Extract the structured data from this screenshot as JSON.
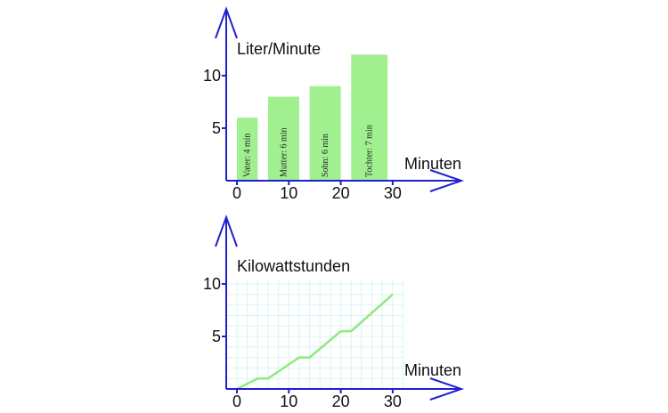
{
  "colors": {
    "axis": "#2020d0",
    "bar": "#a0f090",
    "line": "#90e880",
    "grid": "#d8f4f4"
  },
  "chart_data": [
    {
      "type": "bar",
      "ylabel": "Liter/Minute",
      "xlabel": "Minuten",
      "xticks": [
        "0",
        "10",
        "20",
        "30"
      ],
      "yticks": [
        "5",
        "10"
      ],
      "xlim": [
        -2,
        43
      ],
      "ylim": [
        0,
        16
      ],
      "bars": [
        {
          "label": "Vater: 4 min",
          "x_start": 0,
          "x_end": 4,
          "value": 6
        },
        {
          "label": "Mutter: 6 min",
          "x_start": 6,
          "x_end": 12,
          "value": 8
        },
        {
          "label": "Sohn: 6 min",
          "x_start": 14,
          "x_end": 20,
          "value": 9
        },
        {
          "label": "Tochter: 7 min",
          "x_start": 22,
          "x_end": 29,
          "value": 12
        }
      ],
      "grid": false
    },
    {
      "type": "line",
      "ylabel": "Kilowattstunden",
      "xlabel": "Minuten",
      "xticks": [
        "0",
        "10",
        "20",
        "30"
      ],
      "yticks": [
        "5",
        "10"
      ],
      "xlim": [
        -2,
        43
      ],
      "ylim": [
        0,
        16
      ],
      "x": [
        0,
        4,
        6,
        12,
        14,
        20,
        22,
        30
      ],
      "y": [
        0,
        1,
        1,
        3,
        3,
        5.5,
        5.5,
        9
      ],
      "grid": true
    }
  ]
}
